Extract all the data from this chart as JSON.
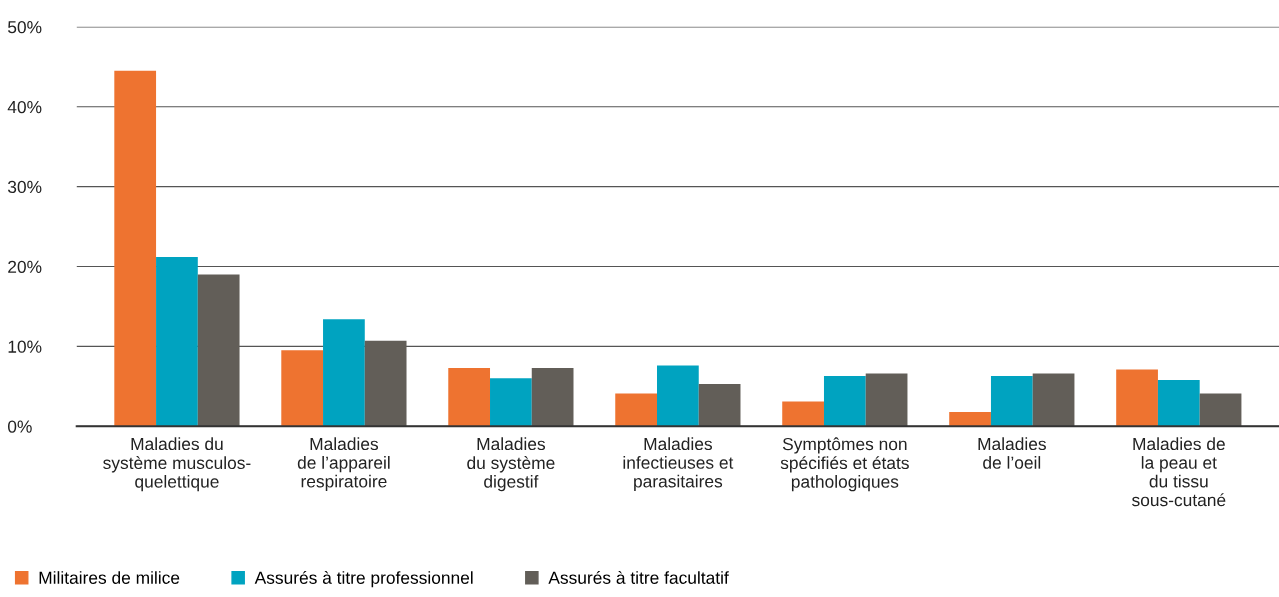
{
  "chart_data": {
    "type": "bar",
    "categories": [
      "Maladies du\nsystème musculos-\nquelettique",
      "Maladies\nde l’appareil\nrespiratoire",
      "Maladies\ndu système\ndigestif",
      "Maladies\ninfectieuses et\nparasitaires",
      "Symptômes non\nspécifiés et états\npathologiques",
      "Maladies\nde l’oeil",
      "Maladies de\nla peau et\ndu tissu\nsous-cutané"
    ],
    "series": [
      {
        "name": "Militaires de milice",
        "color": "#ee7330",
        "values": [
          44.5,
          9.5,
          7.3,
          4.1,
          3.1,
          1.8,
          7.1
        ]
      },
      {
        "name": "Assurés à titre professionnel",
        "color": "#00a3c0",
        "values": [
          21.2,
          13.4,
          6.0,
          7.6,
          6.3,
          6.3,
          5.8
        ]
      },
      {
        "name": "Assurés à titre facultatif",
        "color": "#625e58",
        "values": [
          19.0,
          10.7,
          7.3,
          5.3,
          6.6,
          6.6,
          4.1
        ]
      }
    ],
    "ylim": [
      0,
      50
    ],
    "yticks": [
      {
        "value": 0,
        "label": "0%"
      },
      {
        "value": 10,
        "label": "10%"
      },
      {
        "value": 20,
        "label": "20%"
      },
      {
        "value": 30,
        "label": "30%"
      },
      {
        "value": 40,
        "label": "40%"
      },
      {
        "value": 50,
        "label": "50%"
      }
    ],
    "grid": "y",
    "legend": "bottom left"
  }
}
